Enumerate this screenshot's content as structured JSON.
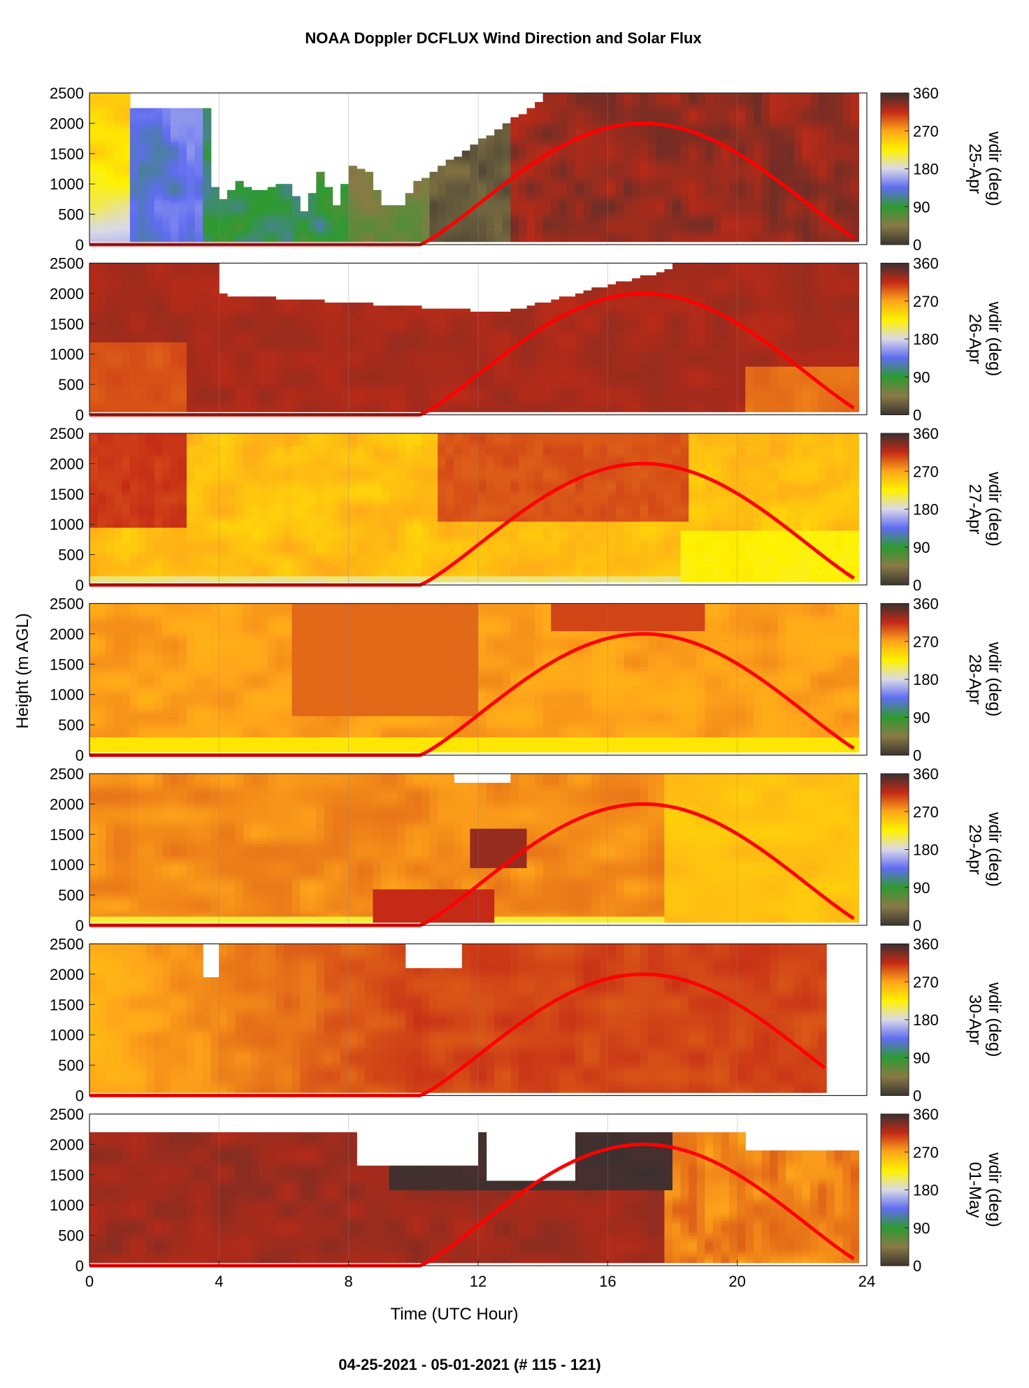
{
  "title": "NOAA Doppler DCFLUX Wind Direction and Solar Flux",
  "footer": "04-25-2021 - 05-01-2021   (# 115 - 121)",
  "chart_data": {
    "type": "heatmap",
    "xlabel": "Time (UTC Hour)",
    "ylabel": "Height (m AGL)",
    "xlim": [
      0,
      24
    ],
    "xticks": [
      0,
      4,
      8,
      12,
      16,
      20,
      24
    ],
    "ylim": [
      0,
      2500
    ],
    "yticks": [
      0,
      500,
      1000,
      1500,
      2000,
      2500
    ],
    "colorbar": {
      "label": "wdir (deg)",
      "range": [
        0,
        360
      ],
      "ticks": [
        0,
        90,
        180,
        270,
        360
      ],
      "stops": [
        {
          "value": 0,
          "color": "#3b3530"
        },
        {
          "value": 45,
          "color": "#8a7a45"
        },
        {
          "value": 90,
          "color": "#2e9a30"
        },
        {
          "value": 135,
          "color": "#5f6cf0"
        },
        {
          "value": 180,
          "color": "#d9d9e8"
        },
        {
          "value": 225,
          "color": "#fff200"
        },
        {
          "value": 270,
          "color": "#ffa51a"
        },
        {
          "value": 315,
          "color": "#c42a16"
        },
        {
          "value": 360,
          "color": "#3a3030"
        }
      ]
    },
    "solar_flux_curve": {
      "color": "#ff0000",
      "sunrise_hour": 10.2,
      "peak_hour": 17.1,
      "peak_height": 2000,
      "end_hour": 23.7
    },
    "panels": [
      {
        "date": "25-Apr",
        "data_end_hour": 23.7
      },
      {
        "date": "26-Apr",
        "data_end_hour": 23.7
      },
      {
        "date": "27-Apr",
        "data_end_hour": 23.7
      },
      {
        "date": "28-Apr",
        "data_end_hour": 23.7
      },
      {
        "date": "29-Apr",
        "data_end_hour": 23.7
      },
      {
        "date": "30-Apr",
        "data_end_hour": 22.7
      },
      {
        "date": "01-May",
        "data_end_hour": 23.7
      }
    ]
  }
}
